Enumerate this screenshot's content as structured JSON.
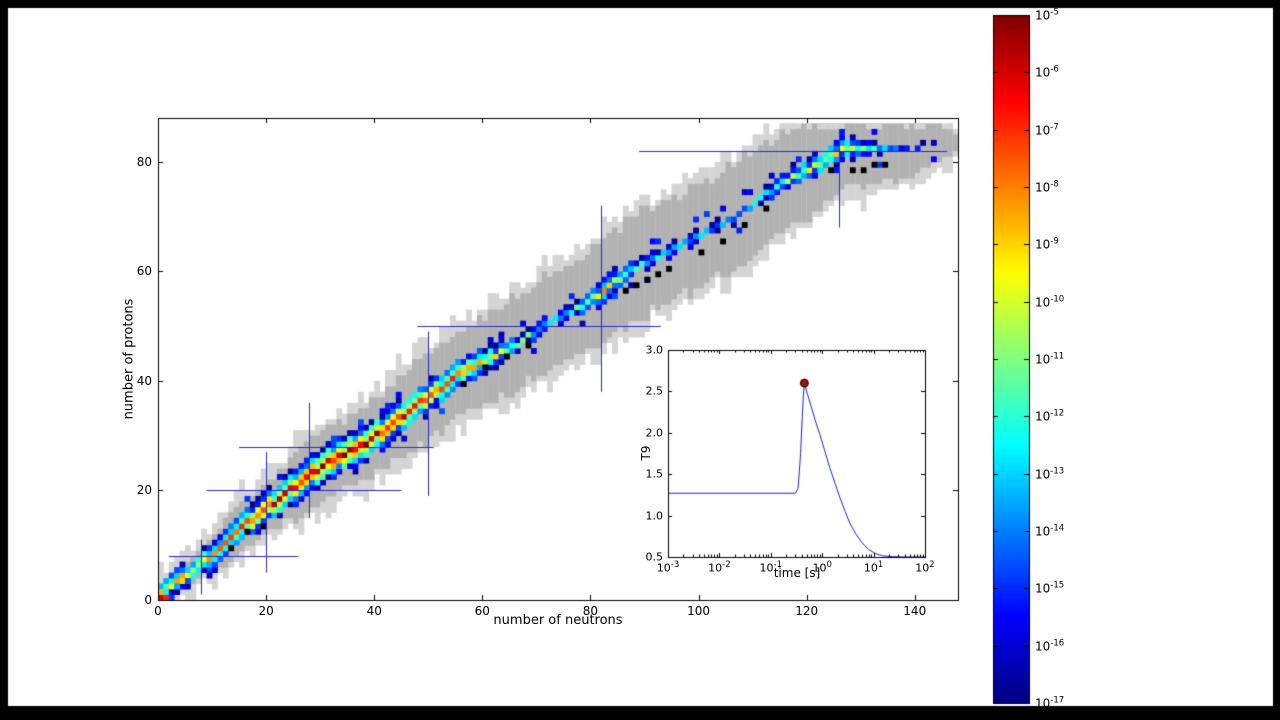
{
  "figure": {
    "background": "#000000",
    "paper_color": "#ffffff"
  },
  "chart_data": {
    "type": "heatmap",
    "title": "",
    "main": {
      "xlabel": "number of neutrons",
      "ylabel": "number of protons",
      "xlim": [
        0,
        148
      ],
      "ylim": [
        0,
        88
      ],
      "xticks": [
        0,
        20,
        40,
        60,
        80,
        100,
        120,
        140
      ],
      "yticks": [
        0,
        20,
        40,
        60,
        80
      ],
      "colors": {
        "band_inner": "#b2b2b2",
        "band_outer": "#d4d4d4",
        "magic_line": "#2a2ace",
        "stable_cell": "#000000"
      },
      "valley": [
        [
          0,
          0
        ],
        [
          2,
          2
        ],
        [
          6,
          5
        ],
        [
          10,
          8
        ],
        [
          14,
          12
        ],
        [
          18,
          15
        ],
        [
          22,
          18
        ],
        [
          26,
          21
        ],
        [
          30,
          24
        ],
        [
          34,
          26
        ],
        [
          38,
          28
        ],
        [
          42,
          31
        ],
        [
          46,
          34
        ],
        [
          50,
          37
        ],
        [
          52,
          38
        ],
        [
          54,
          40
        ],
        [
          58,
          42
        ],
        [
          62,
          44
        ],
        [
          66,
          46
        ],
        [
          70,
          49
        ],
        [
          74,
          51
        ],
        [
          78,
          53
        ],
        [
          82,
          56
        ],
        [
          86,
          59
        ],
        [
          90,
          61
        ],
        [
          94,
          63
        ],
        [
          98,
          65
        ],
        [
          102,
          67
        ],
        [
          106,
          69
        ],
        [
          110,
          72
        ],
        [
          114,
          75
        ],
        [
          118,
          77
        ],
        [
          122,
          79
        ],
        [
          126,
          82
        ],
        [
          134,
          82
        ],
        [
          148,
          83
        ]
      ],
      "abundance_profile_log10": [
        [
          0,
          -6
        ],
        [
          3,
          -8.2
        ],
        [
          6,
          -9
        ],
        [
          10,
          -8
        ],
        [
          14,
          -7
        ],
        [
          18,
          -6.2
        ],
        [
          22,
          -5.6
        ],
        [
          26,
          -5.1
        ],
        [
          30,
          -5.0
        ],
        [
          34,
          -5.0
        ],
        [
          38,
          -5.2
        ],
        [
          42,
          -5.5
        ],
        [
          46,
          -5.9
        ],
        [
          50,
          -6.3
        ],
        [
          54,
          -6.8
        ],
        [
          58,
          -7.6
        ],
        [
          62,
          -9.0
        ],
        [
          66,
          -10.8
        ],
        [
          70,
          -11.8
        ],
        [
          74,
          -12.2
        ],
        [
          78,
          -11.0
        ],
        [
          80,
          -9.6
        ],
        [
          82,
          -8.0
        ],
        [
          84,
          -9.6
        ],
        [
          88,
          -11.4
        ],
        [
          92,
          -12.0
        ],
        [
          96,
          -12.3
        ],
        [
          100,
          -12.6
        ],
        [
          104,
          -13.0
        ],
        [
          108,
          -13.0
        ],
        [
          112,
          -11.8
        ],
        [
          116,
          -10.4
        ],
        [
          120,
          -9.4
        ],
        [
          124,
          -8.9
        ],
        [
          127,
          -9.2
        ],
        [
          130,
          -10.8
        ],
        [
          134,
          -13.0
        ],
        [
          138,
          -14.8
        ],
        [
          142,
          -16.0
        ],
        [
          146,
          -16.8
        ]
      ],
      "gray_halfwidth": [
        [
          0,
          1
        ],
        [
          4,
          2
        ],
        [
          8,
          3
        ],
        [
          14,
          4
        ],
        [
          24,
          5
        ],
        [
          34,
          6
        ],
        [
          48,
          7
        ],
        [
          66,
          8
        ],
        [
          86,
          9
        ],
        [
          108,
          9
        ],
        [
          120,
          8
        ],
        [
          130,
          6
        ],
        [
          138,
          5
        ],
        [
          144,
          3
        ],
        [
          148,
          1
        ]
      ],
      "magic_neutron_lines": [
        {
          "n": 8,
          "z_span": [
            1,
            11
          ]
        },
        {
          "n": 20,
          "z_span": [
            5,
            27
          ]
        },
        {
          "n": 28,
          "z_span": [
            15,
            36
          ]
        },
        {
          "n": 50,
          "z_span": [
            19,
            49
          ]
        },
        {
          "n": 82,
          "z_span": [
            38,
            72
          ]
        },
        {
          "n": 126,
          "z_span": [
            68,
            85
          ]
        }
      ],
      "magic_proton_lines": [
        {
          "z": 8,
          "n_span": [
            2,
            26
          ]
        },
        {
          "z": 20,
          "n_span": [
            9,
            45
          ]
        },
        {
          "z": 28,
          "n_span": [
            15,
            51
          ]
        },
        {
          "z": 50,
          "n_span": [
            48,
            93
          ]
        },
        {
          "z": 82,
          "n_span": [
            89,
            146
          ]
        }
      ],
      "black_cells": [
        [
          13,
          9
        ],
        [
          16,
          12
        ],
        [
          19,
          13
        ],
        [
          56,
          39
        ],
        [
          60,
          42
        ],
        [
          64,
          44
        ],
        [
          68,
          46
        ],
        [
          86,
          56
        ],
        [
          88,
          57
        ],
        [
          90,
          58
        ],
        [
          92,
          59
        ],
        [
          94,
          60
        ],
        [
          100,
          63
        ],
        [
          104,
          65
        ],
        [
          108,
          68
        ],
        [
          112,
          71
        ],
        [
          124,
          78
        ],
        [
          128,
          78
        ],
        [
          130,
          78
        ],
        [
          132,
          79
        ],
        [
          134,
          79
        ]
      ],
      "special_cells": [
        [
          0,
          0,
          -6.0
        ],
        [
          1,
          0,
          -6.9
        ],
        [
          0,
          1,
          -8.6
        ],
        [
          1,
          1,
          -12.5
        ],
        [
          2,
          1,
          -16.4
        ],
        [
          3,
          1,
          -16.5
        ],
        [
          2,
          2,
          -9.8
        ],
        [
          3,
          2,
          -13.5
        ],
        [
          4,
          3,
          -9.0
        ],
        [
          5,
          3,
          -14.5
        ]
      ]
    },
    "colorbar": {
      "min_exponent": -17,
      "max_exponent": -5,
      "tick_exponents": [
        -5,
        -6,
        -7,
        -8,
        -9,
        -10,
        -11,
        -12,
        -13,
        -14,
        -15,
        -16,
        -17
      ]
    },
    "inset": {
      "xlabel": "time [s]",
      "ylabel": "T9",
      "x_log_range": [
        -3,
        2
      ],
      "ylim": [
        0.5,
        3.0
      ],
      "yticks": [
        0.5,
        1.0,
        1.5,
        2.0,
        2.5,
        3.0
      ],
      "xtick_exponents": [
        -3,
        -2,
        -1,
        0,
        1,
        2
      ],
      "line_color": "#2222cc",
      "marker": {
        "x": 0.45,
        "y": 2.6,
        "fill": "#991111",
        "edge": "#220000"
      },
      "series": [
        [
          0.001,
          1.27
        ],
        [
          0.005,
          1.27
        ],
        [
          0.02,
          1.27
        ],
        [
          0.08,
          1.27
        ],
        [
          0.2,
          1.27
        ],
        [
          0.3,
          1.27
        ],
        [
          0.34,
          1.33
        ],
        [
          0.38,
          1.75
        ],
        [
          0.41,
          2.2
        ],
        [
          0.43,
          2.45
        ],
        [
          0.45,
          2.6
        ],
        [
          0.5,
          2.5
        ],
        [
          0.6,
          2.33
        ],
        [
          0.75,
          2.13
        ],
        [
          0.9,
          1.98
        ],
        [
          1.1,
          1.8
        ],
        [
          1.4,
          1.58
        ],
        [
          1.8,
          1.38
        ],
        [
          2.2,
          1.22
        ],
        [
          2.8,
          1.05
        ],
        [
          3.5,
          0.9
        ],
        [
          4.5,
          0.78
        ],
        [
          6,
          0.67
        ],
        [
          8,
          0.59
        ],
        [
          11,
          0.54
        ],
        [
          15,
          0.515
        ],
        [
          22,
          0.505
        ],
        [
          40,
          0.5
        ],
        [
          100,
          0.5
        ]
      ]
    }
  }
}
